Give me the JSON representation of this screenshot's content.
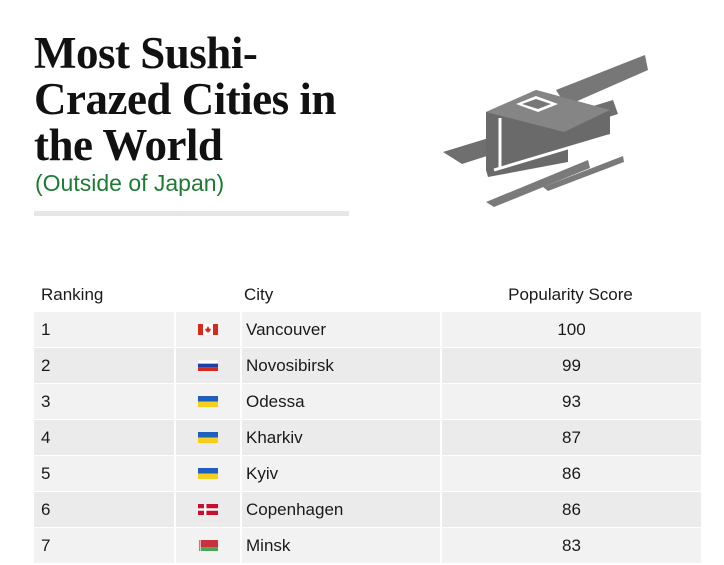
{
  "title": "Most Sushi-Crazed Cities in the World",
  "subtitle": "(Outside of Japan)",
  "colors": {
    "accent_green": "#1e7b35",
    "illustration_gray": "#777777",
    "row_light": "#f2f2f2",
    "row_dark": "#ebebeb"
  },
  "illustration": "sushi-roll-with-chopsticks-icon",
  "chart_data": {
    "type": "table",
    "columns": [
      "Ranking",
      "",
      "City",
      "Popularity Score"
    ],
    "rows": [
      {
        "rank": "1",
        "flag": "canada-flag-icon",
        "city": "Vancouver",
        "score": "100"
      },
      {
        "rank": "2",
        "flag": "russia-flag-icon",
        "city": "Novosibirsk",
        "score": "99"
      },
      {
        "rank": "3",
        "flag": "ukraine-flag-icon",
        "city": "Odessa",
        "score": "93"
      },
      {
        "rank": "4",
        "flag": "ukraine-flag-icon",
        "city": "Kharkiv",
        "score": "87"
      },
      {
        "rank": "5",
        "flag": "ukraine-flag-icon",
        "city": "Kyiv",
        "score": "86"
      },
      {
        "rank": "6",
        "flag": "denmark-flag-icon",
        "city": "Copenhagen",
        "score": "86"
      },
      {
        "rank": "7",
        "flag": "belarus-flag-icon",
        "city": "Minsk",
        "score": "83"
      }
    ]
  }
}
